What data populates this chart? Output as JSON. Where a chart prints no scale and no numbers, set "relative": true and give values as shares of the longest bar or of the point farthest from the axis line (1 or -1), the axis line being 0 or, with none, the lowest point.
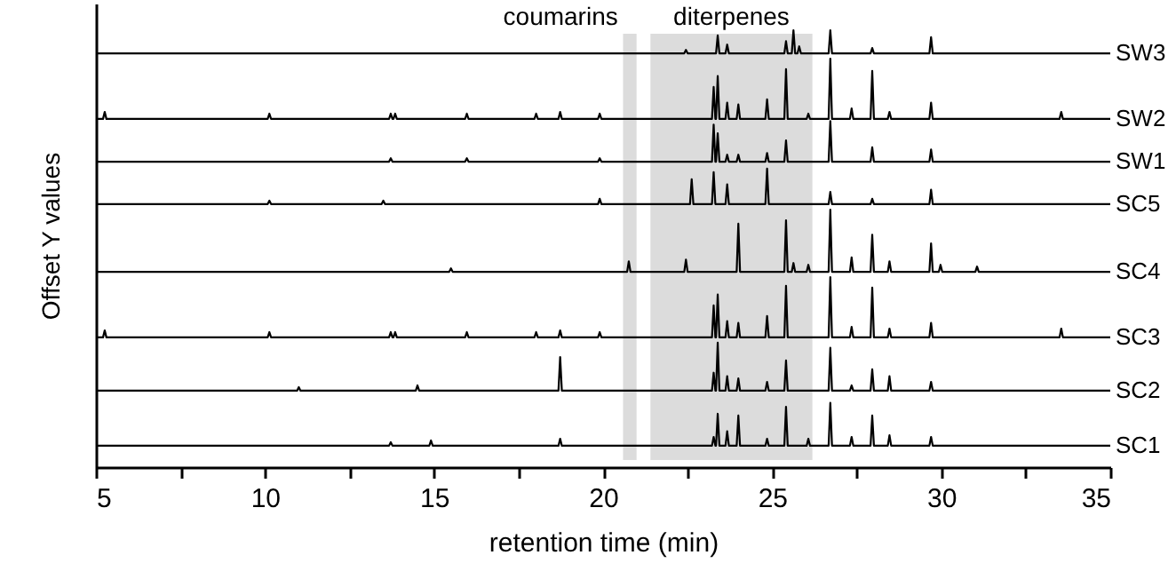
{
  "chart_data": {
    "type": "line",
    "relative": true,
    "xlabel": "retention time (min)",
    "ylabel": "Offset Y values",
    "xlim": [
      5,
      35
    ],
    "xticks": [
      5,
      {
        "value": 7.5,
        "label": null
      },
      10,
      {
        "value": 12.5,
        "label": null
      },
      15,
      {
        "value": 17.5,
        "label": null
      },
      20,
      {
        "value": 22.5,
        "label": null
      },
      25,
      {
        "value": 27.5,
        "label": null
      },
      30,
      {
        "value": 32.5,
        "label": null
      },
      35
    ],
    "grid": false,
    "marker": "none",
    "line_style": "solid",
    "bands": [
      {
        "axis": "x",
        "from": 20.59,
        "to": 20.99,
        "label": "coumarins",
        "color": "#dcdcdc"
      },
      {
        "axis": "x",
        "from": 21.4,
        "to": 26.19,
        "label": "diterpenes",
        "color": "#dcdcdc"
      }
    ],
    "series": [
      {
        "name": "SW3",
        "color": "#000000",
        "x": [
          5,
          22.4,
          22.45,
          22.5,
          23.34,
          23.39,
          23.44,
          23.62,
          23.67,
          23.72,
          25.36,
          25.41,
          25.46,
          25.58,
          25.63,
          25.68,
          25.75,
          25.8,
          25.85,
          26.67,
          26.72,
          26.77,
          27.91,
          27.96,
          28.01,
          29.65,
          29.7,
          29.75,
          35
        ],
        "values": [
          0.947,
          0.947,
          0.955,
          0.947,
          0.947,
          0.988,
          0.947,
          0.947,
          0.967,
          0.947,
          0.947,
          0.975,
          0.947,
          0.947,
          1.0,
          0.947,
          0.947,
          0.963,
          0.947,
          0.947,
          1.0,
          0.947,
          0.947,
          0.959,
          0.947,
          0.947,
          0.984,
          0.947,
          0.947
        ]
      },
      {
        "name": "SW2",
        "color": "#000000",
        "x": [
          5,
          5.21,
          5.26,
          5.31,
          10.08,
          10.13,
          10.18,
          13.67,
          13.72,
          13.77,
          13.8,
          13.85,
          13.9,
          15.92,
          15.97,
          16.02,
          17.97,
          18.02,
          18.07,
          18.68,
          18.73,
          18.78,
          19.85,
          19.9,
          19.95,
          23.22,
          23.27,
          23.32,
          23.34,
          23.39,
          23.44,
          23.62,
          23.67,
          23.72,
          23.95,
          24.0,
          24.05,
          24.8,
          24.85,
          24.9,
          25.36,
          25.41,
          25.46,
          26.02,
          26.07,
          26.12,
          26.67,
          26.72,
          26.77,
          27.3,
          27.35,
          27.4,
          27.91,
          27.96,
          28.01,
          28.42,
          28.47,
          28.52,
          29.65,
          29.7,
          29.75,
          33.5,
          33.55,
          33.6,
          35
        ],
        "values": [
          0.797,
          0.797,
          0.813,
          0.797,
          0.797,
          0.809,
          0.797,
          0.797,
          0.809,
          0.797,
          0.797,
          0.809,
          0.797,
          0.797,
          0.809,
          0.797,
          0.797,
          0.809,
          0.797,
          0.797,
          0.813,
          0.797,
          0.797,
          0.809,
          0.797,
          0.797,
          0.87,
          0.797,
          0.797,
          0.895,
          0.797,
          0.797,
          0.834,
          0.797,
          0.797,
          0.83,
          0.797,
          0.797,
          0.842,
          0.797,
          0.797,
          0.911,
          0.797,
          0.797,
          0.809,
          0.797,
          0.797,
          0.935,
          0.797,
          0.797,
          0.821,
          0.797,
          0.797,
          0.907,
          0.797,
          0.797,
          0.813,
          0.797,
          0.797,
          0.834,
          0.797,
          0.797,
          0.813,
          0.797,
          0.797
        ]
      },
      {
        "name": "SW1",
        "color": "#000000",
        "x": [
          5,
          13.67,
          13.72,
          13.77,
          15.92,
          15.97,
          16.02,
          19.85,
          19.9,
          19.95,
          23.22,
          23.27,
          23.32,
          23.34,
          23.39,
          23.44,
          23.62,
          23.67,
          23.72,
          23.95,
          24.0,
          24.05,
          24.8,
          24.85,
          24.9,
          25.36,
          25.41,
          25.46,
          26.67,
          26.72,
          26.77,
          27.91,
          27.96,
          28.01,
          29.65,
          29.7,
          29.75,
          35
        ],
        "values": [
          0.699,
          0.699,
          0.707,
          0.699,
          0.699,
          0.707,
          0.699,
          0.699,
          0.707,
          0.699,
          0.699,
          0.784,
          0.699,
          0.699,
          0.764,
          0.699,
          0.699,
          0.715,
          0.699,
          0.699,
          0.715,
          0.699,
          0.699,
          0.719,
          0.699,
          0.699,
          0.748,
          0.699,
          0.699,
          0.792,
          0.699,
          0.699,
          0.732,
          0.699,
          0.699,
          0.727,
          0.699,
          0.699
        ]
      },
      {
        "name": "SC5",
        "color": "#000000",
        "x": [
          5,
          10.08,
          10.13,
          10.18,
          13.45,
          13.5,
          13.55,
          19.85,
          19.9,
          19.95,
          22.57,
          22.62,
          22.67,
          23.22,
          23.27,
          23.32,
          23.62,
          23.67,
          23.72,
          24.8,
          24.85,
          24.9,
          26.67,
          26.72,
          26.77,
          27.91,
          27.96,
          28.01,
          29.65,
          29.7,
          29.75,
          35
        ],
        "values": [
          0.602,
          0.602,
          0.61,
          0.602,
          0.602,
          0.61,
          0.602,
          0.602,
          0.614,
          0.602,
          0.602,
          0.659,
          0.602,
          0.602,
          0.675,
          0.602,
          0.602,
          0.647,
          0.602,
          0.602,
          0.683,
          0.602,
          0.602,
          0.63,
          0.602,
          0.602,
          0.614,
          0.602,
          0.602,
          0.635,
          0.602,
          0.602
        ]
      },
      {
        "name": "SC4",
        "color": "#000000",
        "x": [
          5,
          15.45,
          15.5,
          15.55,
          20.71,
          20.76,
          20.81,
          22.4,
          22.45,
          22.5,
          23.95,
          24.0,
          24.05,
          25.36,
          25.41,
          25.46,
          25.58,
          25.63,
          25.68,
          26.02,
          26.07,
          26.12,
          26.67,
          26.72,
          26.77,
          27.3,
          27.35,
          27.4,
          27.91,
          27.96,
          28.01,
          28.42,
          28.47,
          28.52,
          29.65,
          29.7,
          29.75,
          29.93,
          29.98,
          30.03,
          31.01,
          31.06,
          31.11,
          35
        ],
        "values": [
          0.447,
          0.447,
          0.455,
          0.447,
          0.447,
          0.471,
          0.447,
          0.447,
          0.475,
          0.447,
          0.447,
          0.557,
          0.447,
          0.447,
          0.565,
          0.447,
          0.447,
          0.467,
          0.447,
          0.447,
          0.463,
          0.447,
          0.447,
          0.589,
          0.447,
          0.447,
          0.48,
          0.447,
          0.447,
          0.532,
          0.447,
          0.447,
          0.471,
          0.447,
          0.447,
          0.512,
          0.447,
          0.447,
          0.463,
          0.447,
          0.447,
          0.459,
          0.447,
          0.447
        ]
      },
      {
        "name": "SC3",
        "color": "#000000",
        "x": [
          5,
          5.21,
          5.26,
          5.31,
          10.08,
          10.13,
          10.18,
          13.67,
          13.72,
          13.77,
          13.8,
          13.85,
          13.9,
          15.92,
          15.97,
          16.02,
          17.97,
          18.02,
          18.07,
          18.68,
          18.73,
          18.78,
          19.85,
          19.9,
          19.95,
          23.22,
          23.27,
          23.32,
          23.34,
          23.39,
          23.44,
          23.62,
          23.67,
          23.72,
          23.95,
          24.0,
          24.05,
          24.8,
          24.85,
          24.9,
          25.36,
          25.41,
          25.46,
          26.67,
          26.72,
          26.77,
          27.3,
          27.35,
          27.4,
          27.91,
          27.96,
          28.01,
          28.42,
          28.47,
          28.52,
          29.65,
          29.7,
          29.75,
          33.5,
          33.55,
          33.6,
          35
        ],
        "values": [
          0.297,
          0.297,
          0.313,
          0.297,
          0.297,
          0.309,
          0.297,
          0.297,
          0.309,
          0.297,
          0.297,
          0.309,
          0.297,
          0.297,
          0.309,
          0.297,
          0.297,
          0.309,
          0.297,
          0.297,
          0.313,
          0.297,
          0.297,
          0.309,
          0.297,
          0.297,
          0.37,
          0.297,
          0.297,
          0.395,
          0.297,
          0.297,
          0.334,
          0.297,
          0.297,
          0.33,
          0.297,
          0.297,
          0.346,
          0.297,
          0.297,
          0.415,
          0.297,
          0.297,
          0.435,
          0.297,
          0.297,
          0.321,
          0.297,
          0.297,
          0.411,
          0.297,
          0.297,
          0.317,
          0.297,
          0.297,
          0.33,
          0.297,
          0.297,
          0.317,
          0.297,
          0.297
        ]
      },
      {
        "name": "SC2",
        "color": "#000000",
        "x": [
          5,
          10.95,
          11.0,
          11.05,
          14.46,
          14.51,
          14.56,
          18.68,
          18.73,
          18.78,
          23.22,
          23.27,
          23.32,
          23.34,
          23.39,
          23.44,
          23.62,
          23.67,
          23.72,
          23.95,
          24.0,
          24.05,
          24.8,
          24.85,
          24.9,
          25.36,
          25.41,
          25.46,
          26.67,
          26.72,
          26.77,
          27.3,
          27.35,
          27.4,
          27.91,
          27.96,
          28.01,
          28.42,
          28.47,
          28.52,
          29.65,
          29.7,
          29.75,
          35
        ],
        "values": [
          0.175,
          0.175,
          0.183,
          0.175,
          0.175,
          0.187,
          0.175,
          0.175,
          0.252,
          0.175,
          0.175,
          0.216,
          0.175,
          0.175,
          0.285,
          0.175,
          0.175,
          0.208,
          0.175,
          0.175,
          0.203,
          0.175,
          0.175,
          0.195,
          0.175,
          0.175,
          0.244,
          0.175,
          0.175,
          0.273,
          0.175,
          0.175,
          0.187,
          0.175,
          0.175,
          0.224,
          0.175,
          0.175,
          0.208,
          0.175,
          0.175,
          0.195,
          0.175,
          0.175
        ]
      },
      {
        "name": "SC1",
        "color": "#000000",
        "x": [
          5,
          13.67,
          13.72,
          13.77,
          14.86,
          14.91,
          14.96,
          18.68,
          18.73,
          18.78,
          23.22,
          23.27,
          23.32,
          23.34,
          23.39,
          23.44,
          23.62,
          23.67,
          23.72,
          23.95,
          24.0,
          24.05,
          24.8,
          24.85,
          24.9,
          25.36,
          25.41,
          25.46,
          26.02,
          26.07,
          26.12,
          26.67,
          26.72,
          26.77,
          27.3,
          27.35,
          27.4,
          27.91,
          27.96,
          28.01,
          28.42,
          28.47,
          28.52,
          29.65,
          29.7,
          29.75,
          35
        ],
        "values": [
          0.049,
          0.049,
          0.057,
          0.049,
          0.049,
          0.061,
          0.049,
          0.049,
          0.065,
          0.049,
          0.049,
          0.069,
          0.049,
          0.049,
          0.122,
          0.049,
          0.049,
          0.082,
          0.049,
          0.049,
          0.118,
          0.049,
          0.049,
          0.065,
          0.049,
          0.049,
          0.138,
          0.049,
          0.049,
          0.065,
          0.049,
          0.049,
          0.147,
          0.049,
          0.049,
          0.069,
          0.049,
          0.049,
          0.118,
          0.049,
          0.049,
          0.073,
          0.049,
          0.049,
          0.069,
          0.049,
          0.049
        ]
      }
    ]
  }
}
